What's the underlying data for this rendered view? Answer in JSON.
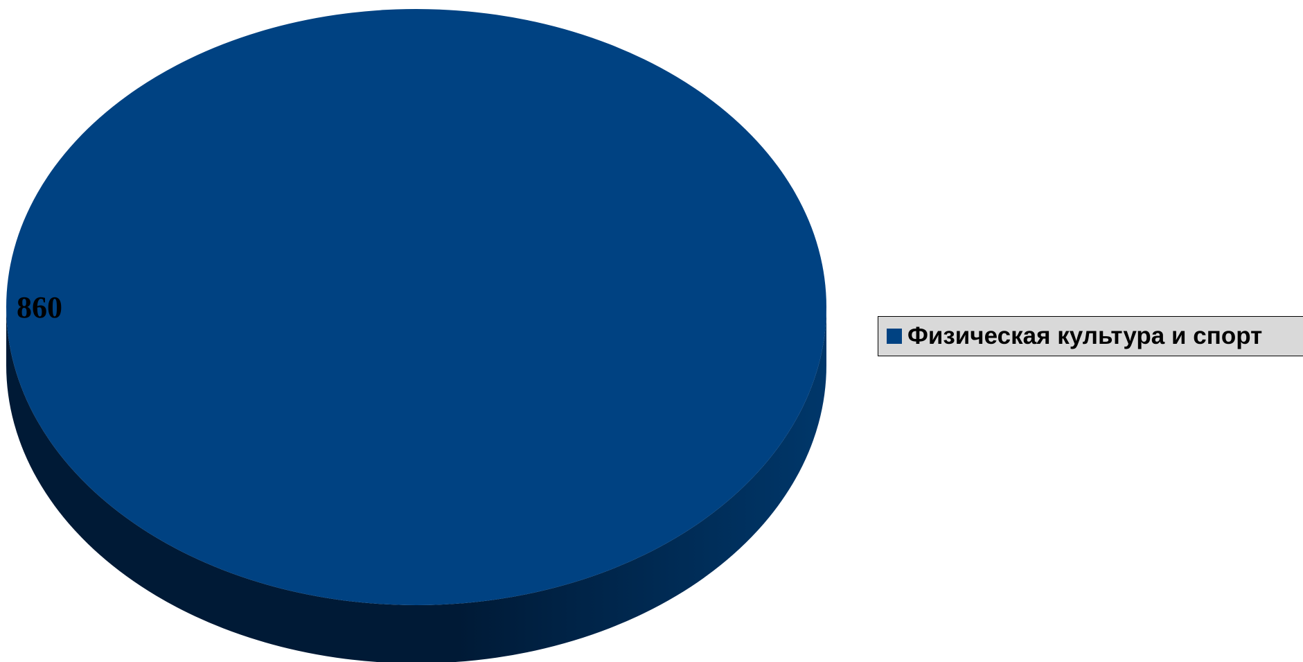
{
  "chart_data": {
    "type": "pie",
    "style": "3d",
    "categories": [
      "Физическая культура и спорт"
    ],
    "values": [
      860
    ],
    "data_labels": [
      "860"
    ],
    "colors": {
      "slice_top": "#004282",
      "slice_side_light": "#00376a",
      "slice_side_dark": "#001a36"
    },
    "legend": {
      "placement": "right",
      "items": [
        {
          "label": "Физическая культура и спорт",
          "color": "#004282"
        }
      ],
      "background": "#d9d9d9"
    }
  }
}
